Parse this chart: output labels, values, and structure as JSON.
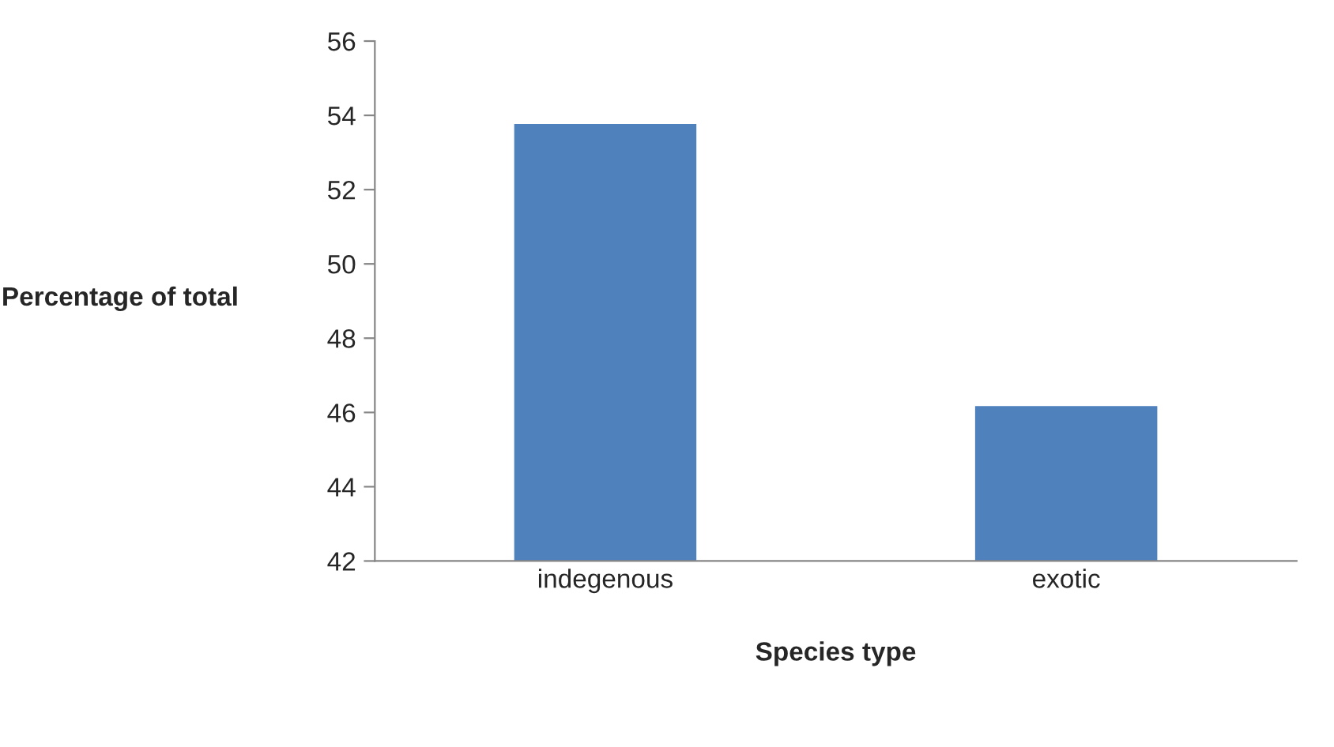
{
  "chart_data": {
    "type": "bar",
    "xlabel": "Species type",
    "ylabel": "Percentage of total",
    "categories": [
      "indegenous",
      "exotic"
    ],
    "values": [
      53.8,
      46.2
    ],
    "color": "#4f81bd",
    "ylim": [
      42,
      56
    ],
    "yticks": [
      42,
      44,
      46,
      48,
      50,
      52,
      54,
      56
    ],
    "grid": false
  }
}
